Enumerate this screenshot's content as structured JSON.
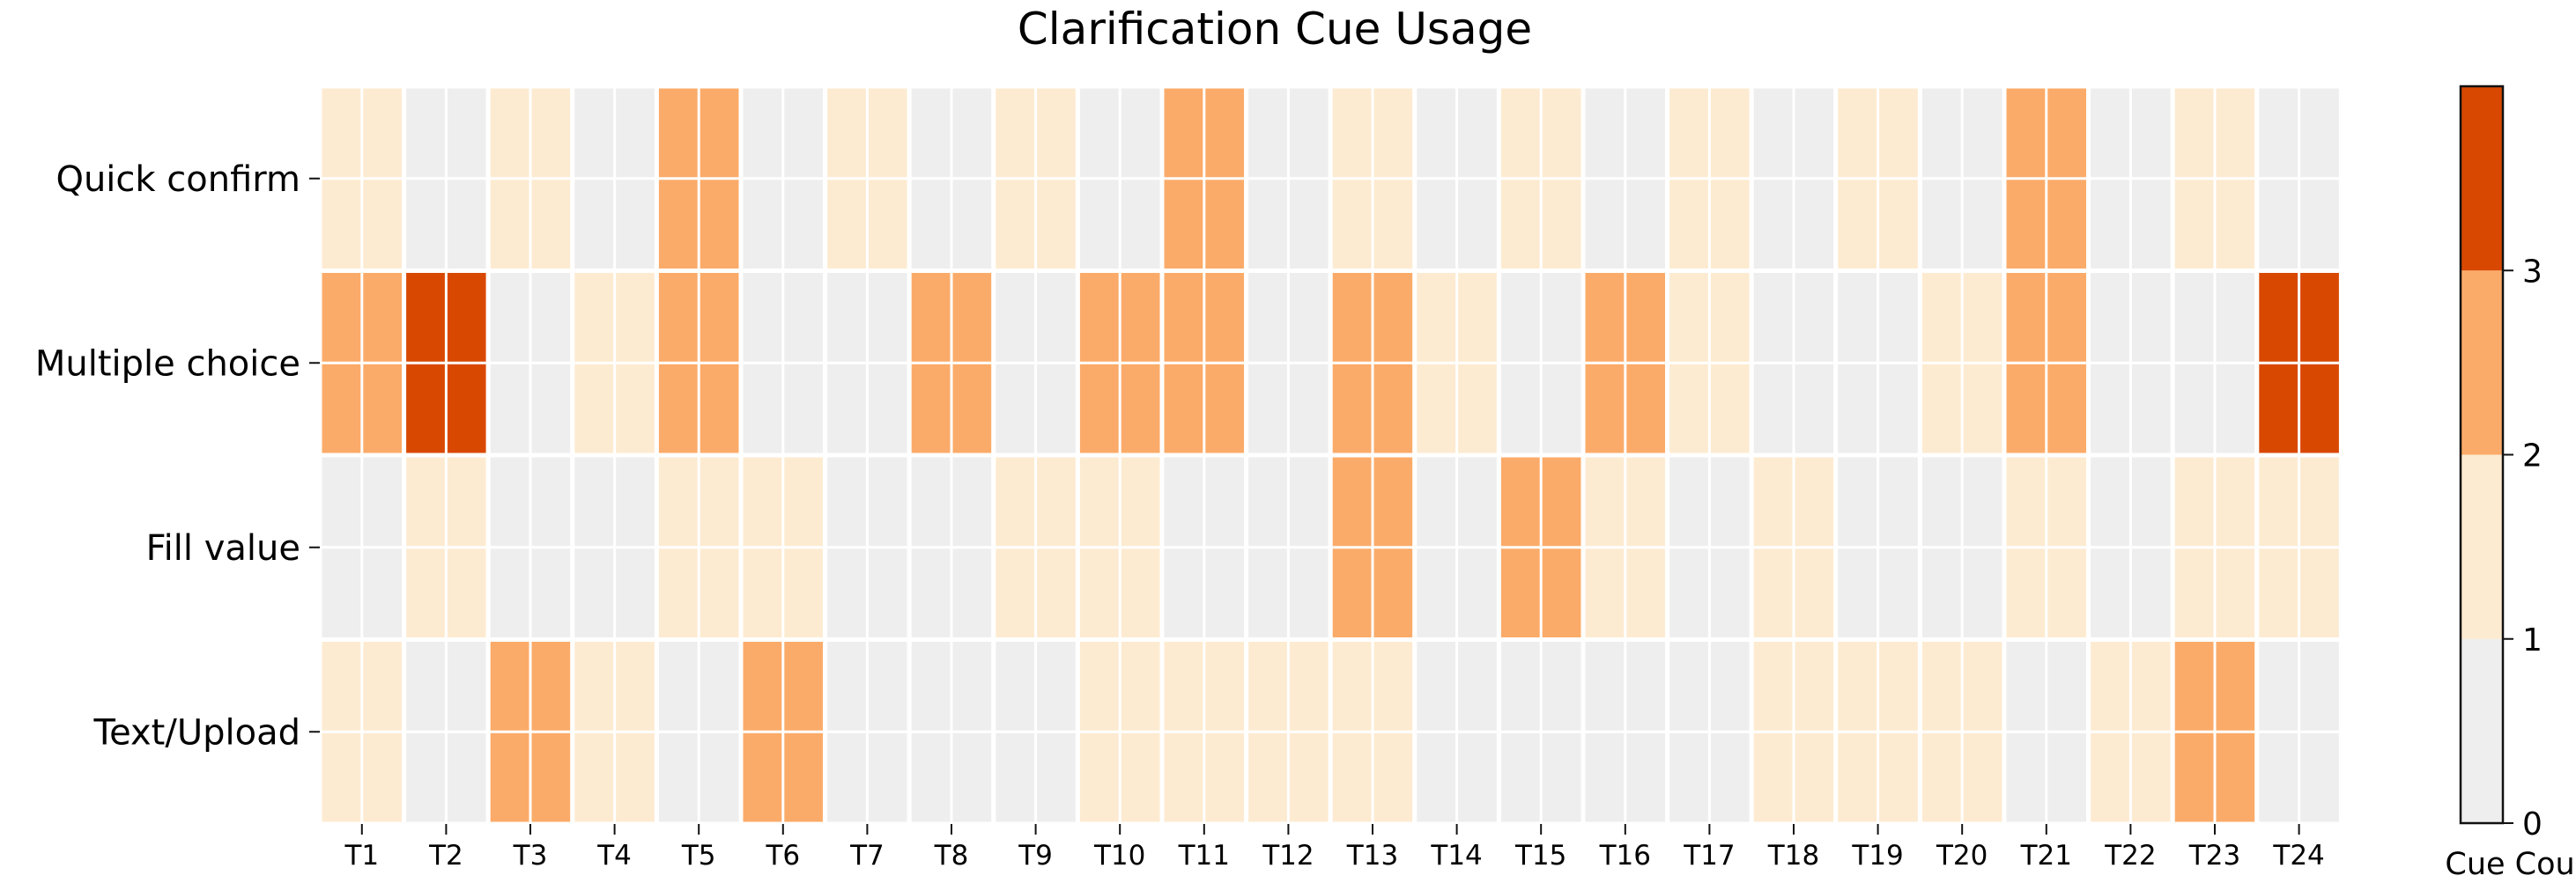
{
  "chart_data": {
    "type": "heatmap",
    "title": "Clarification Cue Usage",
    "xlabel": "",
    "ylabel": "",
    "x_categories": [
      "T1",
      "T2",
      "T3",
      "T4",
      "T5",
      "T6",
      "T7",
      "T8",
      "T9",
      "T10",
      "T11",
      "T12",
      "T13",
      "T14",
      "T15",
      "T16",
      "T17",
      "T18",
      "T19",
      "T20",
      "T21",
      "T22",
      "T23",
      "T24"
    ],
    "y_categories": [
      "Quick confirm",
      "Multiple choice",
      "Fill value",
      "Text/Upload"
    ],
    "values": [
      [
        1,
        0,
        1,
        0,
        2,
        0,
        1,
        0,
        1,
        0,
        2,
        0,
        1,
        0,
        1,
        0,
        1,
        0,
        1,
        0,
        2,
        0,
        1,
        0
      ],
      [
        2,
        3,
        0,
        1,
        2,
        0,
        0,
        2,
        0,
        2,
        2,
        0,
        2,
        1,
        0,
        2,
        1,
        0,
        0,
        1,
        2,
        0,
        0,
        3
      ],
      [
        0,
        1,
        0,
        0,
        1,
        1,
        0,
        0,
        1,
        1,
        0,
        0,
        2,
        0,
        2,
        1,
        0,
        1,
        0,
        0,
        1,
        0,
        1,
        1
      ],
      [
        1,
        0,
        2,
        1,
        0,
        2,
        0,
        0,
        0,
        1,
        1,
        1,
        1,
        0,
        0,
        0,
        0,
        1,
        1,
        1,
        0,
        1,
        2,
        0
      ]
    ],
    "colorbar": {
      "label": "Cue Count",
      "range": [
        0,
        4
      ],
      "ticks": [
        "0",
        "1",
        "2",
        "3"
      ],
      "bins": [
        {
          "from": 0,
          "to": 1,
          "color": "#eeeeee"
        },
        {
          "from": 1,
          "to": 2,
          "color": "#fdebd1"
        },
        {
          "from": 2,
          "to": 3,
          "color": "#fbab69"
        },
        {
          "from": 3,
          "to": 4,
          "color": "#d94801"
        }
      ]
    },
    "grid": "white cell separators"
  }
}
